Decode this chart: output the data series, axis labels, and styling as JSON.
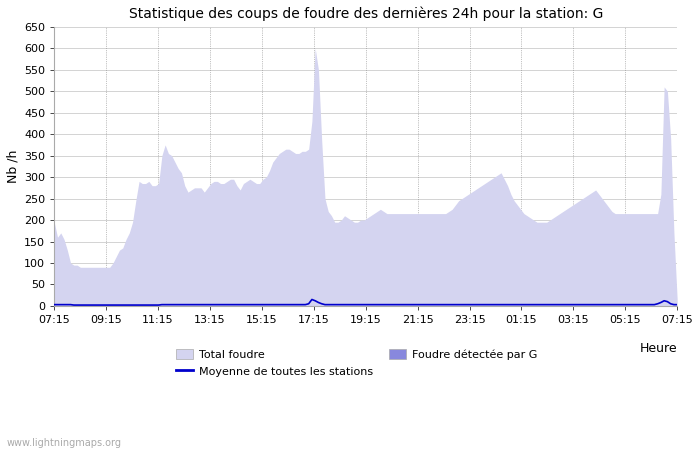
{
  "title": "Statistique des coups de foudre des dernières 24h pour la station: G",
  "ylabel": "Nb /h",
  "xlabel": "Heure",
  "ylim": [
    0,
    650
  ],
  "yticks": [
    0,
    50,
    100,
    150,
    200,
    250,
    300,
    350,
    400,
    450,
    500,
    550,
    600,
    650
  ],
  "x_labels": [
    "07:15",
    "09:15",
    "11:15",
    "13:15",
    "15:15",
    "17:15",
    "19:15",
    "21:15",
    "23:15",
    "01:15",
    "03:15",
    "05:15",
    "07:15"
  ],
  "color_total": "#d4d4f0",
  "color_detected": "#8888dd",
  "color_moyenne": "#0000cc",
  "watermark": "www.lightningmaps.org",
  "legend_total": "Total foudre",
  "legend_detected": "Foudre détectée par G",
  "legend_moyenne": "Moyenne de toutes les stations",
  "total_foudre": [
    195,
    160,
    170,
    155,
    130,
    100,
    95,
    95,
    90,
    90,
    90,
    90,
    90,
    90,
    90,
    90,
    90,
    90,
    100,
    115,
    130,
    135,
    155,
    170,
    195,
    245,
    290,
    285,
    285,
    290,
    280,
    280,
    285,
    350,
    375,
    355,
    350,
    335,
    320,
    310,
    280,
    265,
    270,
    275,
    275,
    275,
    265,
    275,
    285,
    290,
    290,
    285,
    285,
    290,
    295,
    295,
    280,
    270,
    285,
    290,
    295,
    290,
    285,
    285,
    295,
    300,
    315,
    335,
    345,
    355,
    360,
    365,
    365,
    360,
    355,
    355,
    360,
    360,
    365,
    430,
    600,
    550,
    385,
    250,
    220,
    210,
    195,
    195,
    200,
    210,
    205,
    200,
    195,
    195,
    200,
    200,
    205,
    210,
    215,
    220,
    225,
    220,
    215,
    215,
    215,
    215,
    215,
    215,
    215,
    215,
    215,
    215,
    215,
    215,
    215,
    215,
    215,
    215,
    215,
    215,
    215,
    220,
    225,
    235,
    245,
    250,
    255,
    260,
    265,
    270,
    275,
    280,
    285,
    290,
    295,
    300,
    305,
    310,
    295,
    280,
    260,
    245,
    235,
    225,
    215,
    210,
    205,
    200,
    195,
    195,
    195,
    195,
    200,
    205,
    210,
    215,
    220,
    225,
    230,
    235,
    240,
    245,
    250,
    255,
    260,
    265,
    270,
    260,
    250,
    240,
    230,
    220,
    215,
    215,
    215,
    215,
    215,
    215,
    215,
    215,
    215,
    215,
    215,
    215,
    215,
    215,
    260,
    510,
    500,
    390,
    170,
    15
  ],
  "moyenne": [
    3,
    3,
    3,
    3,
    3,
    3,
    2,
    2,
    2,
    2,
    2,
    2,
    2,
    2,
    2,
    2,
    2,
    2,
    2,
    2,
    2,
    2,
    2,
    2,
    2,
    2,
    2,
    2,
    2,
    2,
    2,
    2,
    2,
    3,
    3,
    3,
    3,
    3,
    3,
    3,
    3,
    3,
    3,
    3,
    3,
    3,
    3,
    3,
    3,
    3,
    3,
    3,
    3,
    3,
    3,
    3,
    3,
    3,
    3,
    3,
    3,
    3,
    3,
    3,
    3,
    3,
    3,
    3,
    3,
    3,
    3,
    3,
    3,
    3,
    3,
    3,
    3,
    3,
    5,
    15,
    12,
    8,
    5,
    3,
    3,
    3,
    3,
    3,
    3,
    3,
    3,
    3,
    3,
    3,
    3,
    3,
    3,
    3,
    3,
    3,
    3,
    3,
    3,
    3,
    3,
    3,
    3,
    3,
    3,
    3,
    3,
    3,
    3,
    3,
    3,
    3,
    3,
    3,
    3,
    3,
    3,
    3,
    3,
    3,
    3,
    3,
    3,
    3,
    3,
    3,
    3,
    3,
    3,
    3,
    3,
    3,
    3,
    3,
    3,
    3,
    3,
    3,
    3,
    3,
    3,
    3,
    3,
    3,
    3,
    3,
    3,
    3,
    3,
    3,
    3,
    3,
    3,
    3,
    3,
    3,
    3,
    3,
    3,
    3,
    3,
    3,
    3,
    3,
    3,
    3,
    3,
    3,
    3,
    3,
    3,
    3,
    3,
    3,
    3,
    3,
    3,
    3,
    3,
    3,
    3,
    5,
    8,
    12,
    10,
    5,
    3,
    3
  ]
}
